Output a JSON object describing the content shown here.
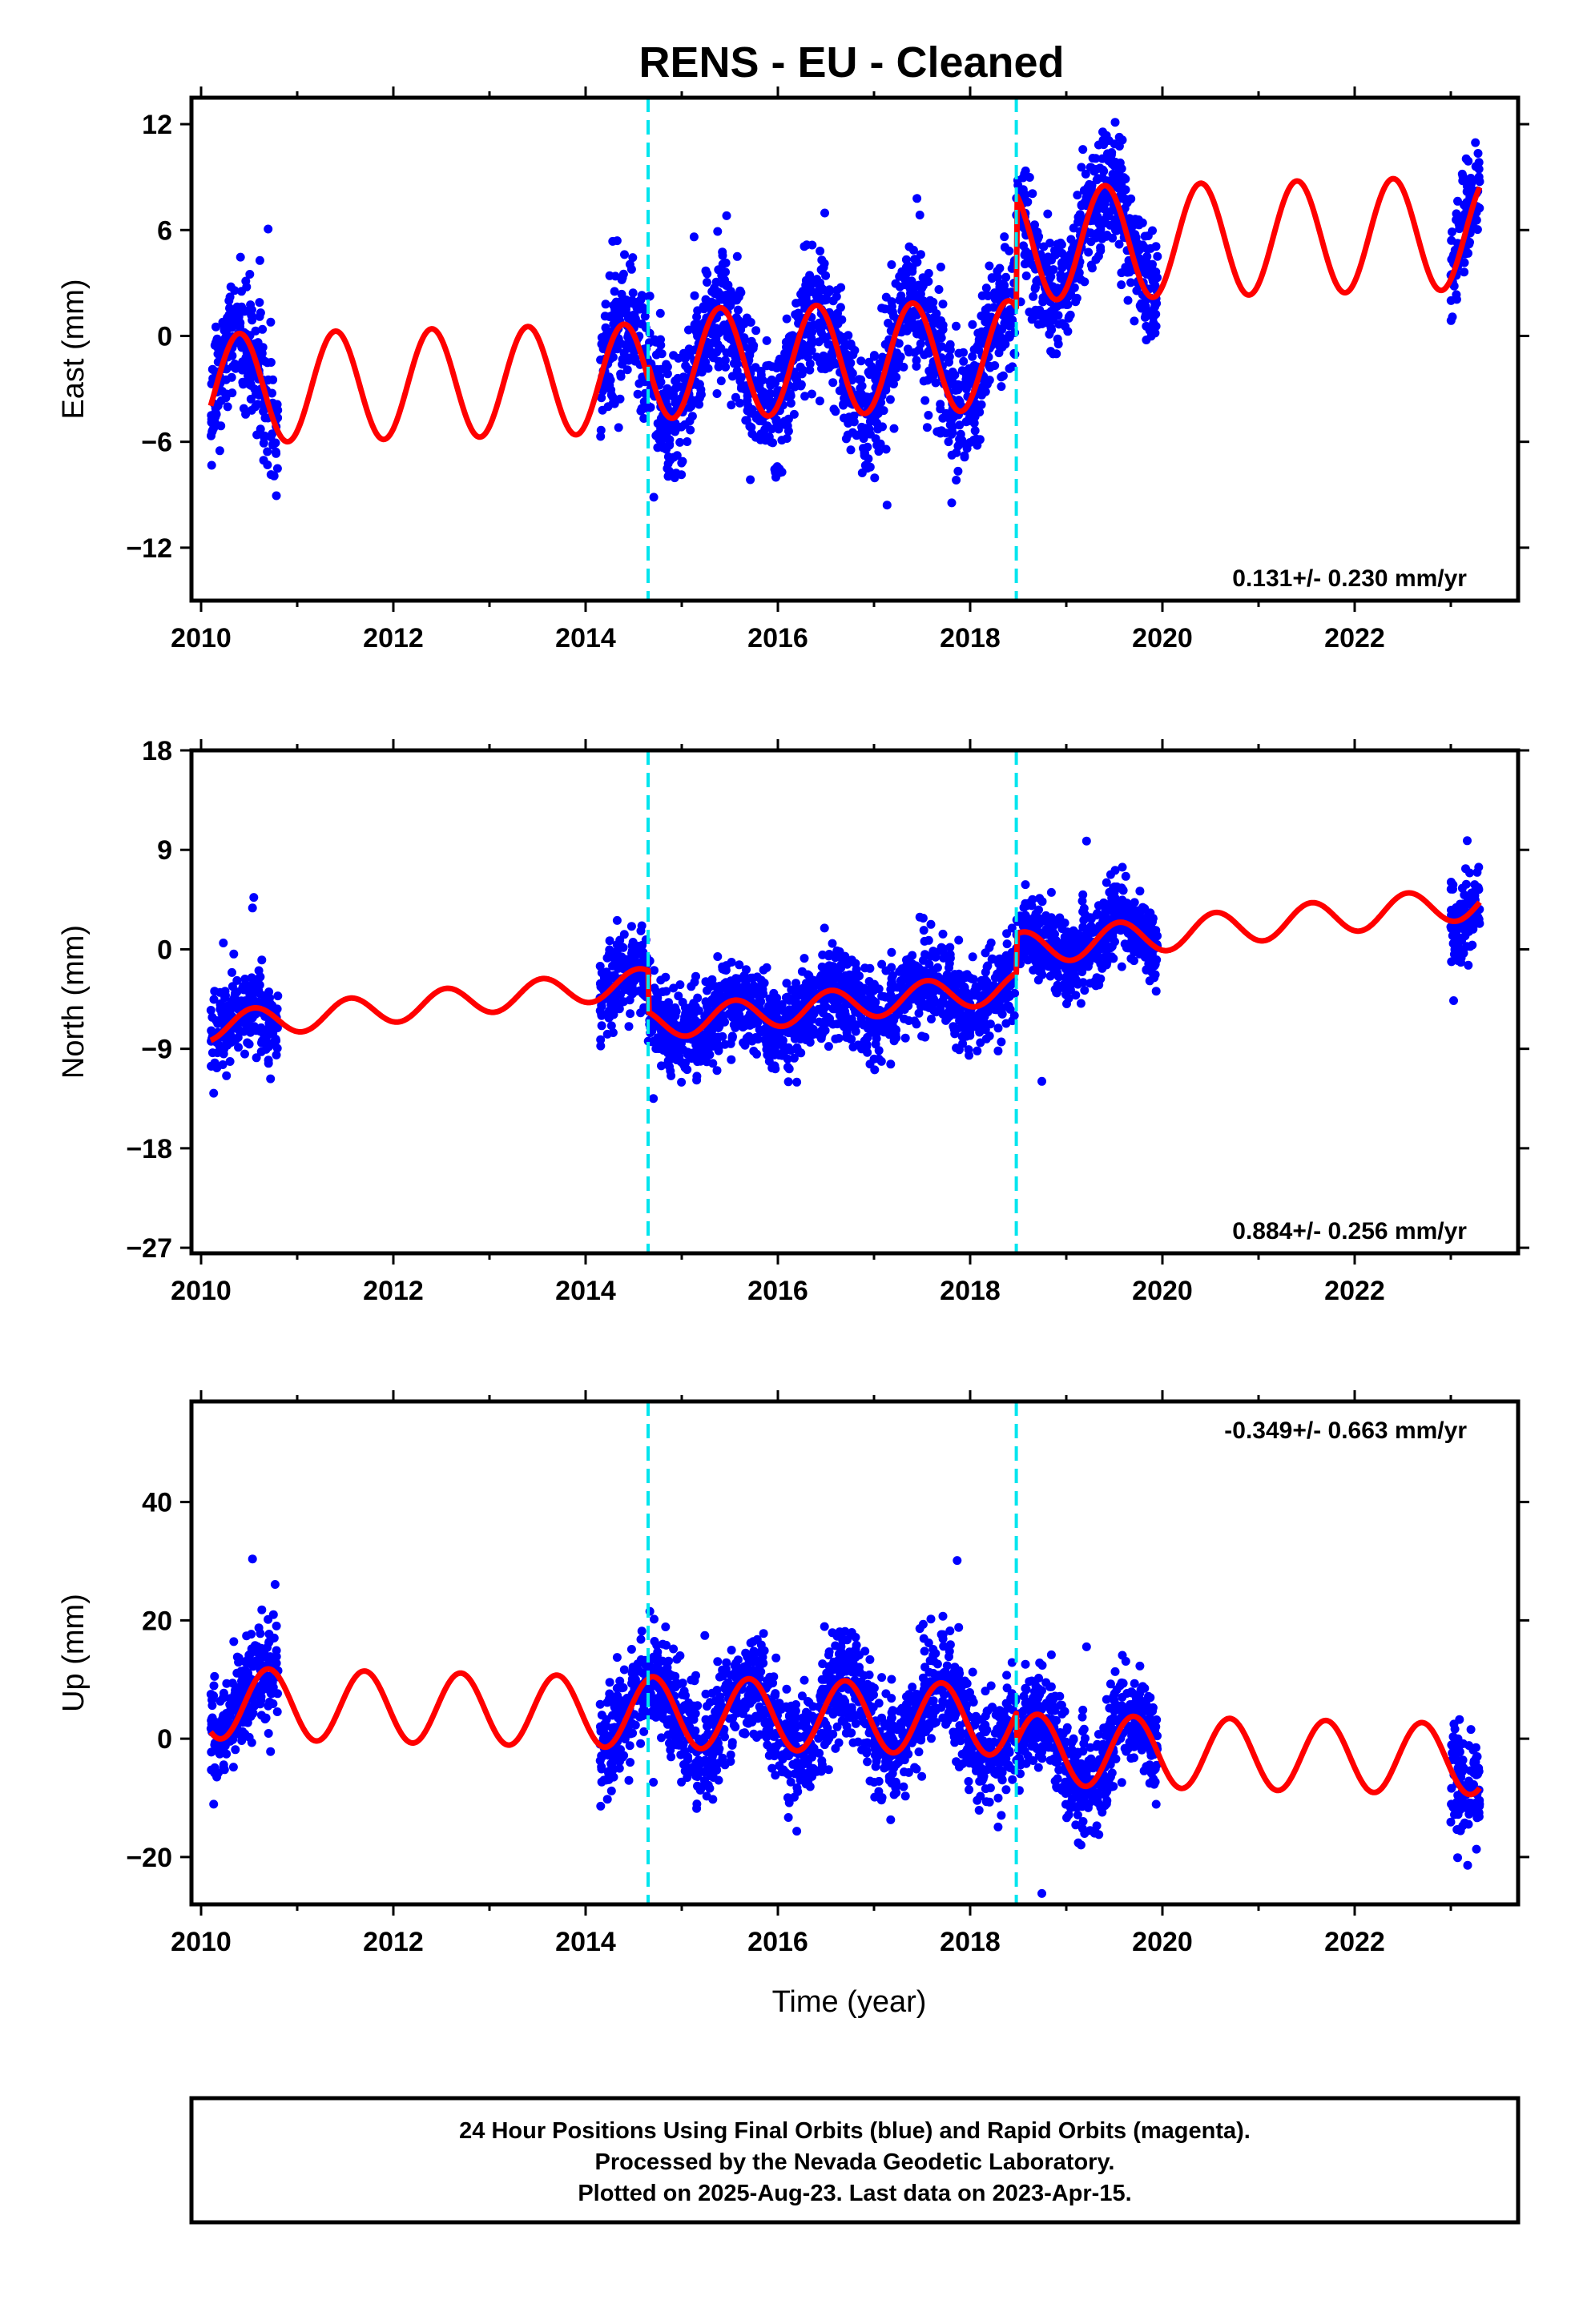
{
  "title": "RENS  - EU - Cleaned",
  "colors": {
    "points": "#0000ff",
    "model": "#ff0000",
    "breaks": "#00e5ee",
    "axes": "#000000"
  },
  "chart_data": [
    {
      "type": "scatter",
      "ylabel": "East (mm)",
      "xlim": [
        2009.9,
        2023.7
      ],
      "ylim": [
        -15,
        13.5
      ],
      "yticks": [
        12,
        6,
        0,
        -6,
        -12
      ],
      "xticks": [
        2010,
        2012,
        2014,
        2016,
        2018,
        2020,
        2022
      ],
      "rate_label": "0.131+/- 0.230 mm/yr",
      "rate_position": "bottom-right",
      "breaks": [
        2014.65,
        2018.48
      ],
      "model": {
        "segments": [
          {
            "start": 2010.1,
            "end": 2014.65,
            "offset": -3.0,
            "trend": 0.131,
            "amp": 3.1
          },
          {
            "start": 2014.65,
            "end": 2018.48,
            "offset": -1.6,
            "trend": 0.131,
            "amp": 3.1
          },
          {
            "start": 2018.48,
            "end": 2023.3,
            "offset": 5.2,
            "trend": 0.131,
            "amp": 3.2
          }
        ],
        "phase": 2010.15
      },
      "data_spans": [
        [
          2010.1,
          2010.8
        ],
        [
          2014.15,
          2019.95
        ],
        [
          2023.0,
          2023.3
        ]
      ],
      "scatter": 1.7
    },
    {
      "type": "scatter",
      "ylabel": "North (mm)",
      "xlim": [
        2009.9,
        2023.7
      ],
      "ylim": [
        -27.5,
        18
      ],
      "yticks": [
        18,
        9,
        0,
        -9,
        -18,
        -27
      ],
      "xticks": [
        2010,
        2012,
        2014,
        2016,
        2018,
        2020,
        2022
      ],
      "rate_label": "0.884+/- 0.256 mm/yr",
      "rate_position": "bottom-right",
      "breaks": [
        2014.65,
        2018.48
      ],
      "model": {
        "segments": [
          {
            "start": 2010.1,
            "end": 2014.65,
            "offset": -7.0,
            "trend": 0.884,
            "amp": 1.3
          },
          {
            "start": 2014.65,
            "end": 2018.48,
            "offset": -6.8,
            "trend": 0.884,
            "amp": 1.4
          },
          {
            "start": 2018.48,
            "end": 2023.3,
            "offset": 0.0,
            "trend": 0.884,
            "amp": 1.5
          }
        ],
        "phase": 2010.3
      },
      "data_spans": [
        [
          2010.1,
          2010.8
        ],
        [
          2014.15,
          2019.95
        ],
        [
          2023.0,
          2023.3
        ]
      ],
      "scatter": 1.9
    },
    {
      "type": "scatter",
      "ylabel": "Up (mm)",
      "xlabel": "Time (year)",
      "xlim": [
        2009.9,
        2023.7
      ],
      "ylim": [
        -28,
        57
      ],
      "yticks": [
        40,
        20,
        0,
        -20
      ],
      "xticks": [
        2010,
        2012,
        2014,
        2016,
        2018,
        2020,
        2022
      ],
      "rate_label": "-0.349+/- 0.663 mm/yr",
      "rate_position": "top-right",
      "breaks": [
        2014.65,
        2018.48
      ],
      "model": {
        "segments": [
          {
            "start": 2010.1,
            "end": 2014.65,
            "offset": 6.0,
            "trend": -0.349,
            "amp": 6.0
          },
          {
            "start": 2014.65,
            "end": 2018.48,
            "offset": 4.5,
            "trend": -0.349,
            "amp": 6.0
          },
          {
            "start": 2018.48,
            "end": 2023.3,
            "offset": -1.8,
            "trend": -0.349,
            "amp": 6.0
          }
        ],
        "phase": 2010.45
      },
      "data_spans": [
        [
          2010.1,
          2010.8
        ],
        [
          2014.15,
          2019.95
        ],
        [
          2023.0,
          2023.3
        ]
      ],
      "scatter": 4.5
    }
  ],
  "footer": {
    "line1": "24 Hour Positions Using Final Orbits (blue) and Rapid Orbits (magenta).",
    "line2": "Processed by the Nevada Geodetic Laboratory.",
    "line3": "Plotted on 2025-Aug-23. Last data on 2023-Apr-15."
  }
}
